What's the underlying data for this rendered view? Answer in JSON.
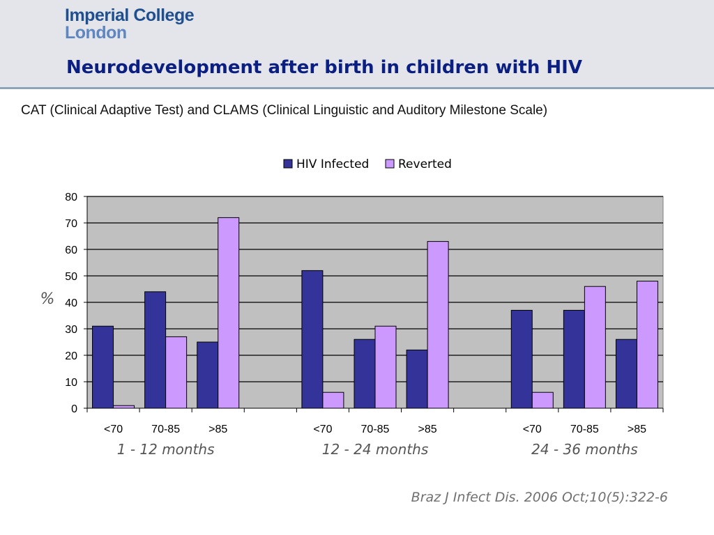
{
  "header": {
    "logo_line1": "Imperial College",
    "logo_line2": "London",
    "title": "Neurodevelopment after birth in children with HIV"
  },
  "subtitle": "CAT (Clinical Adaptive Test) and CLAMS (Clinical Linguistic and Auditory Milestone Scale)",
  "citation": "Braz J Infect Dis. 2006 Oct;10(5):322-6",
  "chart_data": {
    "type": "bar",
    "title": "",
    "xlabel": "",
    "ylabel": "%",
    "ylim": [
      0,
      80
    ],
    "yticks": [
      0,
      10,
      20,
      30,
      40,
      50,
      60,
      70,
      80
    ],
    "grid": true,
    "legend_position": "top",
    "groups": [
      "1 - 12 months",
      "12 - 24 months",
      "24 - 36 months"
    ],
    "categories": [
      "<70",
      "70-85",
      ">85"
    ],
    "series": [
      {
        "name": "HIV Infected",
        "color": "#333399",
        "values": [
          [
            31,
            44,
            25
          ],
          [
            52,
            26,
            22
          ],
          [
            37,
            37,
            26
          ]
        ]
      },
      {
        "name": "Reverted",
        "color": "#cc99ff",
        "values": [
          [
            1,
            27,
            72
          ],
          [
            6,
            31,
            63
          ],
          [
            6,
            46,
            48
          ]
        ]
      }
    ],
    "plot_background": "#c0c0c0"
  }
}
